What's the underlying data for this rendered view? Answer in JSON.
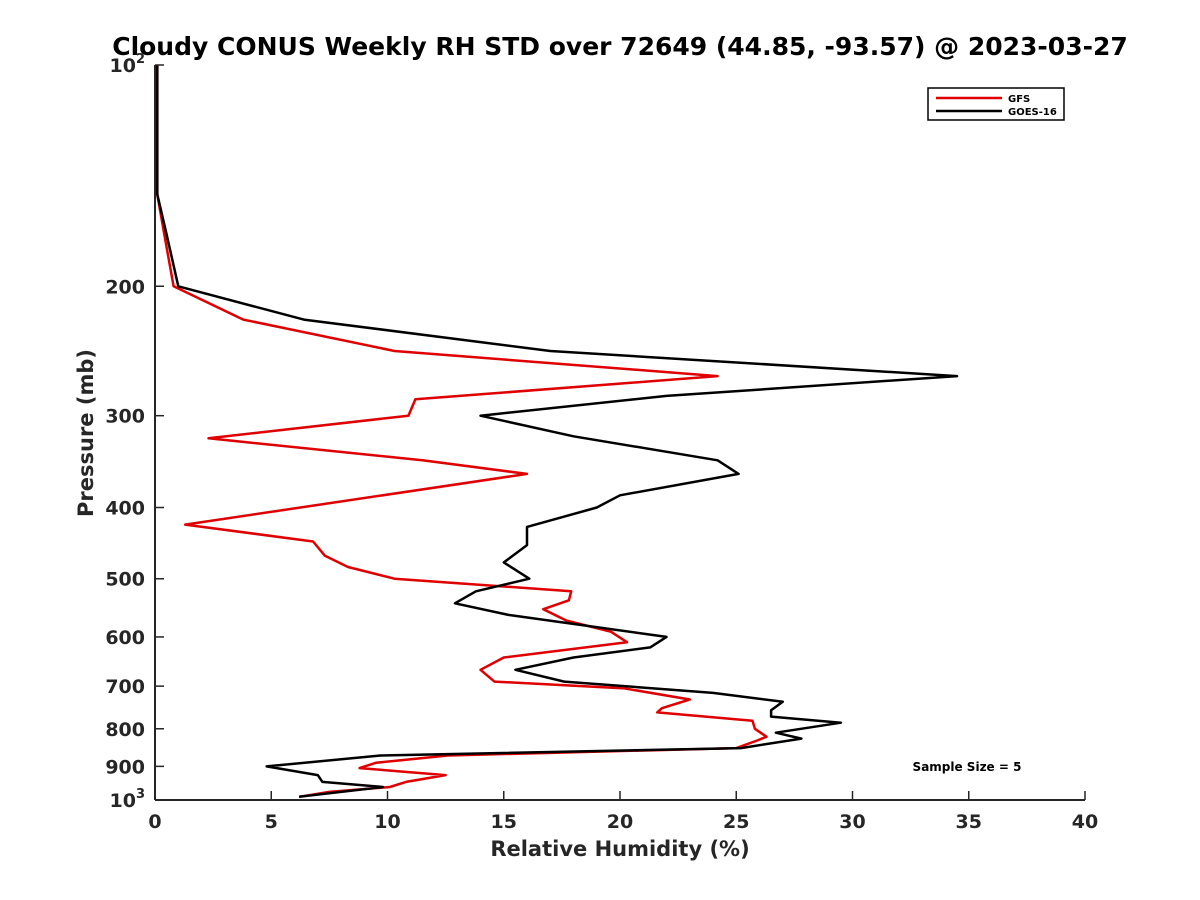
{
  "chart_data": {
    "type": "line",
    "title": "Cloudy CONUS Weekly RH STD over 72649 (44.85, -93.57) @ 2023-03-27",
    "xlabel": "Relative Humidity (%)",
    "ylabel": "Pressure (mb)",
    "xlim": [
      0,
      40
    ],
    "ylim": [
      100,
      1000
    ],
    "y_scale": "log",
    "y_reversed": true,
    "x_ticks": [
      "0",
      "5",
      "10",
      "15",
      "20",
      "25",
      "30",
      "35",
      "40"
    ],
    "y_ticks": [
      {
        "value": 100,
        "base": "10",
        "exp": "2"
      },
      {
        "value": 200,
        "label": "200"
      },
      {
        "value": 300,
        "label": "300"
      },
      {
        "value": 400,
        "label": "400"
      },
      {
        "value": 500,
        "label": "500"
      },
      {
        "value": 600,
        "label": "600"
      },
      {
        "value": 700,
        "label": "700"
      },
      {
        "value": 800,
        "label": "800"
      },
      {
        "value": 900,
        "label": "900"
      },
      {
        "value": 1000,
        "base": "10",
        "exp": "3"
      }
    ],
    "grid": false,
    "legend_position": "top-right",
    "annotation": "Sample Size = 5",
    "series": [
      {
        "name": "GFS",
        "color": "#e00000",
        "points": [
          [
            0.1,
            100
          ],
          [
            0.1,
            125
          ],
          [
            0.1,
            150
          ],
          [
            0.4,
            170
          ],
          [
            0.8,
            200
          ],
          [
            3.8,
            222
          ],
          [
            10.3,
            245
          ],
          [
            24.2,
            265
          ],
          [
            11.2,
            285
          ],
          [
            10.9,
            300
          ],
          [
            2.3,
            322
          ],
          [
            11.5,
            345
          ],
          [
            16.0,
            360
          ],
          [
            1.3,
            422
          ],
          [
            6.8,
            445
          ],
          [
            7.3,
            465
          ],
          [
            8.3,
            482
          ],
          [
            10.3,
            500
          ],
          [
            17.9,
            520
          ],
          [
            17.8,
            535
          ],
          [
            16.7,
            550
          ],
          [
            17.7,
            570
          ],
          [
            19.6,
            590
          ],
          [
            20.3,
            610
          ],
          [
            15.0,
            640
          ],
          [
            14.0,
            665
          ],
          [
            14.6,
            690
          ],
          [
            20.2,
            705
          ],
          [
            23.0,
            730
          ],
          [
            21.8,
            750
          ],
          [
            21.6,
            760
          ],
          [
            25.7,
            780
          ],
          [
            25.8,
            800
          ],
          [
            26.3,
            820
          ],
          [
            25.9,
            830
          ],
          [
            25.0,
            850
          ],
          [
            12.6,
            870
          ],
          [
            9.5,
            890
          ],
          [
            8.8,
            905
          ],
          [
            12.5,
            925
          ],
          [
            10.8,
            945
          ],
          [
            10.1,
            960
          ],
          [
            7.5,
            975
          ],
          [
            6.2,
            990
          ]
        ]
      },
      {
        "name": "GOES-16",
        "color": "#000000",
        "points": [
          [
            0.1,
            100
          ],
          [
            0.1,
            125
          ],
          [
            0.1,
            150
          ],
          [
            0.5,
            170
          ],
          [
            1.0,
            200
          ],
          [
            6.4,
            222
          ],
          [
            17.0,
            245
          ],
          [
            34.5,
            265
          ],
          [
            22.0,
            282
          ],
          [
            14.0,
            300
          ],
          [
            18.0,
            320
          ],
          [
            24.2,
            345
          ],
          [
            25.1,
            360
          ],
          [
            20.0,
            385
          ],
          [
            19.0,
            400
          ],
          [
            16.0,
            425
          ],
          [
            16.0,
            450
          ],
          [
            15.0,
            475
          ],
          [
            16.1,
            500
          ],
          [
            13.8,
            520
          ],
          [
            12.9,
            540
          ],
          [
            15.2,
            560
          ],
          [
            22.0,
            600
          ],
          [
            21.3,
            620
          ],
          [
            18.0,
            640
          ],
          [
            15.5,
            665
          ],
          [
            17.6,
            690
          ],
          [
            24.0,
            715
          ],
          [
            27.0,
            735
          ],
          [
            26.5,
            755
          ],
          [
            26.5,
            770
          ],
          [
            29.5,
            785
          ],
          [
            26.7,
            810
          ],
          [
            27.8,
            825
          ],
          [
            25.2,
            850
          ],
          [
            9.7,
            870
          ],
          [
            4.8,
            900
          ],
          [
            7.0,
            925
          ],
          [
            7.2,
            945
          ],
          [
            9.8,
            960
          ],
          [
            6.2,
            990
          ]
        ]
      }
    ]
  }
}
